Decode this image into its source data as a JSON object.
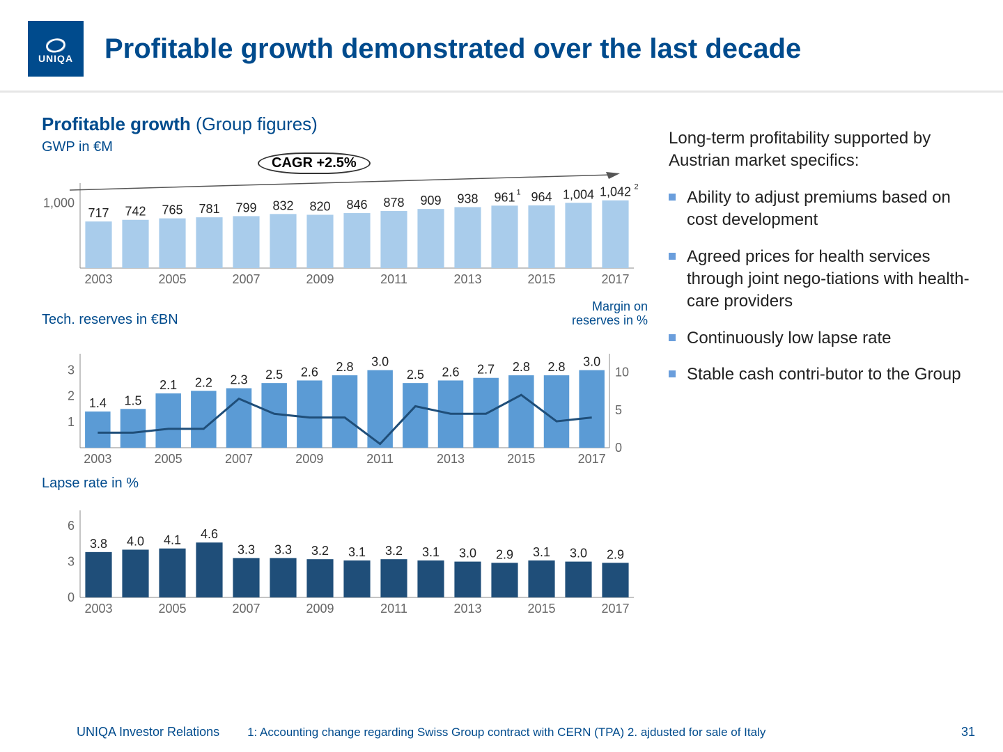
{
  "brand": {
    "name": "UNIQA",
    "logo_bg": "#004b8d"
  },
  "title": "Profitable growth demonstrated over the last decade",
  "section_title_bold": "Profitable growth",
  "section_title_light": " (Group figures)",
  "cagr_label": "CAGR +2.5%",
  "chart1": {
    "type": "bar",
    "label": "GWP in €M",
    "bar_color": "#a9cceb",
    "axis_color": "#888888",
    "text_color": "#222222",
    "label_color": "#004b8d",
    "value_fontsize": 18,
    "axis_fontsize": 18,
    "ylim": [
      0,
      1200
    ],
    "ytick": 1000,
    "years": [
      2003,
      2004,
      2005,
      2006,
      2007,
      2008,
      2009,
      2010,
      2011,
      2012,
      2013,
      2014,
      2015,
      2016,
      2017
    ],
    "x_tick_years": [
      2003,
      2005,
      2007,
      2009,
      2011,
      2013,
      2015,
      2017
    ],
    "values": [
      717,
      742,
      765,
      781,
      799,
      832,
      820,
      846,
      878,
      909,
      938,
      961,
      964,
      1004,
      1042
    ],
    "value_labels": [
      "717",
      "742",
      "765",
      "781",
      "799",
      "832",
      "820",
      "846",
      "878",
      "909",
      "938",
      "961",
      "964",
      "1,004",
      "1,042"
    ],
    "superscripts": {
      "11": "1",
      "14": "2"
    }
  },
  "chart2": {
    "type": "bar+line",
    "label_left": "Tech. reserves in €BN",
    "label_right": "Margin on\nreserves in %",
    "bar_color": "#5b9bd5",
    "line_color": "#1f4e79",
    "axis_color": "#888888",
    "label_color": "#004b8d",
    "value_fontsize": 18,
    "axis_fontsize": 18,
    "ylim_left": [
      0,
      3.5
    ],
    "yticks_left": [
      1,
      2,
      3
    ],
    "ylim_right": [
      0,
      12
    ],
    "yticks_right": [
      0,
      5,
      10
    ],
    "years": [
      2003,
      2004,
      2005,
      2006,
      2007,
      2008,
      2009,
      2010,
      2011,
      2012,
      2013,
      2014,
      2015,
      2016,
      2017
    ],
    "x_tick_years": [
      2003,
      2005,
      2007,
      2009,
      2011,
      2013,
      2015,
      2017
    ],
    "bar_values": [
      1.4,
      1.5,
      2.1,
      2.2,
      2.3,
      2.5,
      2.6,
      2.8,
      3.0,
      2.5,
      2.6,
      2.7,
      2.8,
      2.8,
      3.0
    ],
    "line_values": [
      2.0,
      2.0,
      2.5,
      2.5,
      6.5,
      4.5,
      4.0,
      4.0,
      0.5,
      5.5,
      4.5,
      4.5,
      7.0,
      3.5,
      4.0
    ]
  },
  "chart3": {
    "type": "bar",
    "label": "Lapse rate in %",
    "bar_color": "#1f4e79",
    "axis_color": "#888888",
    "label_color": "#004b8d",
    "value_fontsize": 18,
    "axis_fontsize": 18,
    "ylim": [
      0,
      7
    ],
    "yticks": [
      0,
      3,
      6
    ],
    "years": [
      2003,
      2004,
      2005,
      2006,
      2007,
      2008,
      2009,
      2010,
      2011,
      2012,
      2013,
      2014,
      2015,
      2016,
      2017
    ],
    "x_tick_years": [
      2003,
      2005,
      2007,
      2009,
      2011,
      2013,
      2015,
      2017
    ],
    "values": [
      3.8,
      4.0,
      4.1,
      4.6,
      3.3,
      3.3,
      3.2,
      3.1,
      3.2,
      3.1,
      3.0,
      2.9,
      3.1,
      3.0,
      2.9
    ]
  },
  "side": {
    "intro": "Long-term profitability supported by Austrian market specifics:",
    "bullets": [
      "Ability to adjust premiums based on cost development",
      "Agreed prices for health services through joint nego-tiations with health-care providers",
      "Continuously low lapse rate",
      "Stable cash contri-butor to the Group"
    ]
  },
  "footer": {
    "source": "UNIQA Investor Relations",
    "note": "1: Accounting change regarding Swiss Group contract with CERN (TPA) 2. ajdusted for sale of Italy",
    "page": "31"
  }
}
